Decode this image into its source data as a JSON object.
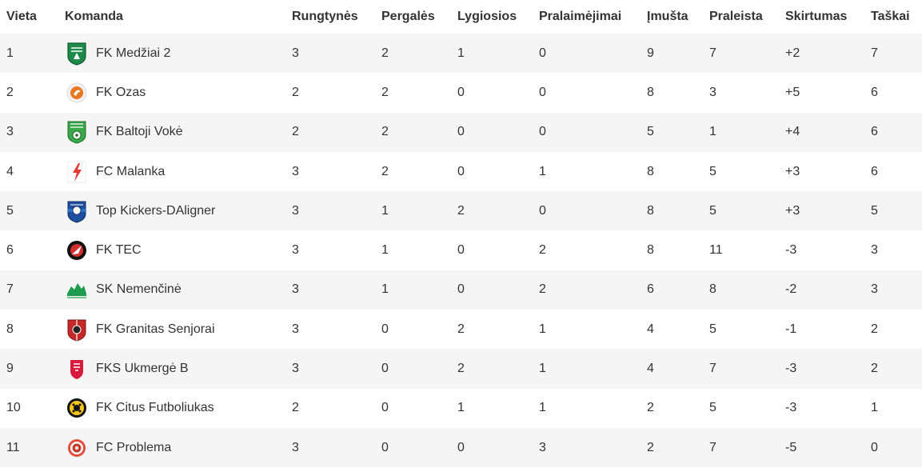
{
  "headers": {
    "place": "Vieta",
    "team": "Komanda",
    "played": "Rungtynės",
    "wins": "Pergalės",
    "draws": "Lygiosios",
    "losses": "Pralaimėjimai",
    "scored": "Įmušta",
    "conceded": "Praleista",
    "difference": "Skirtumas",
    "points": "Taškai"
  },
  "rows": [
    {
      "place": "1",
      "team": "FK Medžiai 2",
      "logo_icon": "medziai-crest-icon",
      "played": "3",
      "wins": "2",
      "draws": "1",
      "losses": "0",
      "scored": "9",
      "conceded": "7",
      "difference": "+2",
      "points": "7"
    },
    {
      "place": "2",
      "team": "FK Ozas",
      "logo_icon": "ozas-crest-icon",
      "played": "2",
      "wins": "2",
      "draws": "0",
      "losses": "0",
      "scored": "8",
      "conceded": "3",
      "difference": "+5",
      "points": "6"
    },
    {
      "place": "3",
      "team": "FK Baltoji Vokė",
      "logo_icon": "baltoji-voke-crest-icon",
      "played": "2",
      "wins": "2",
      "draws": "0",
      "losses": "0",
      "scored": "5",
      "conceded": "1",
      "difference": "+4",
      "points": "6"
    },
    {
      "place": "4",
      "team": "FC Malanka",
      "logo_icon": "malanka-crest-icon",
      "played": "3",
      "wins": "2",
      "draws": "0",
      "losses": "1",
      "scored": "8",
      "conceded": "5",
      "difference": "+3",
      "points": "6"
    },
    {
      "place": "5",
      "team": "Top Kickers-DAligner",
      "logo_icon": "top-kickers-crest-icon",
      "played": "3",
      "wins": "1",
      "draws": "2",
      "losses": "0",
      "scored": "8",
      "conceded": "5",
      "difference": "+3",
      "points": "5"
    },
    {
      "place": "6",
      "team": "FK TEC",
      "logo_icon": "tec-crest-icon",
      "played": "3",
      "wins": "1",
      "draws": "0",
      "losses": "2",
      "scored": "8",
      "conceded": "11",
      "difference": "-3",
      "points": "3"
    },
    {
      "place": "7",
      "team": "SK Nemenčinė",
      "logo_icon": "nemencine-crest-icon",
      "played": "3",
      "wins": "1",
      "draws": "0",
      "losses": "2",
      "scored": "6",
      "conceded": "8",
      "difference": "-2",
      "points": "3"
    },
    {
      "place": "8",
      "team": "FK Granitas Senjorai",
      "logo_icon": "granitas-crest-icon",
      "played": "3",
      "wins": "0",
      "draws": "2",
      "losses": "1",
      "scored": "4",
      "conceded": "5",
      "difference": "-1",
      "points": "2"
    },
    {
      "place": "9",
      "team": "FKS Ukmergė B",
      "logo_icon": "ukmerge-crest-icon",
      "played": "3",
      "wins": "0",
      "draws": "2",
      "losses": "1",
      "scored": "4",
      "conceded": "7",
      "difference": "-3",
      "points": "2"
    },
    {
      "place": "10",
      "team": "FK Citus Futboliukas",
      "logo_icon": "citus-crest-icon",
      "played": "2",
      "wins": "0",
      "draws": "1",
      "losses": "1",
      "scored": "2",
      "conceded": "5",
      "difference": "-3",
      "points": "1"
    },
    {
      "place": "11",
      "team": "FC Problema",
      "logo_icon": "problema-crest-icon",
      "played": "3",
      "wins": "0",
      "draws": "0",
      "losses": "3",
      "scored": "2",
      "conceded": "7",
      "difference": "-5",
      "points": "0"
    }
  ]
}
